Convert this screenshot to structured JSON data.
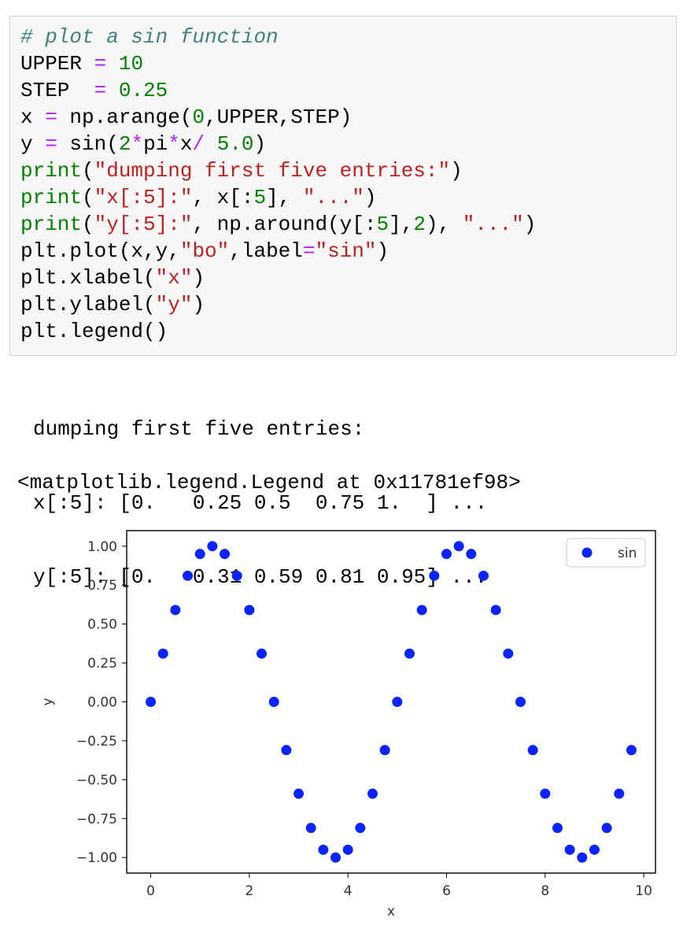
{
  "code": {
    "lines": [
      [
        {
          "t": "# plot a sin function",
          "c": "cm"
        }
      ],
      [
        {
          "t": "UPPER ",
          "c": "nm"
        },
        {
          "t": "=",
          "c": "op"
        },
        {
          "t": " ",
          "c": "nm"
        },
        {
          "t": "10",
          "c": "num"
        }
      ],
      [
        {
          "t": "STEP  ",
          "c": "nm"
        },
        {
          "t": "=",
          "c": "op"
        },
        {
          "t": " ",
          "c": "nm"
        },
        {
          "t": "0.25",
          "c": "num"
        }
      ],
      [
        {
          "t": "x ",
          "c": "nm"
        },
        {
          "t": "=",
          "c": "op"
        },
        {
          "t": " np.arange(",
          "c": "nm"
        },
        {
          "t": "0",
          "c": "num"
        },
        {
          "t": ",UPPER,STEP)",
          "c": "nm"
        }
      ],
      [
        {
          "t": "y ",
          "c": "nm"
        },
        {
          "t": "=",
          "c": "op"
        },
        {
          "t": " sin(",
          "c": "nm"
        },
        {
          "t": "2",
          "c": "num"
        },
        {
          "t": "*",
          "c": "op"
        },
        {
          "t": "pi",
          "c": "nm"
        },
        {
          "t": "*",
          "c": "op"
        },
        {
          "t": "x",
          "c": "nm"
        },
        {
          "t": "/",
          "c": "op"
        },
        {
          "t": " ",
          "c": "nm"
        },
        {
          "t": "5.0",
          "c": "num"
        },
        {
          "t": ")",
          "c": "nm"
        }
      ],
      [
        {
          "t": "print",
          "c": "bi"
        },
        {
          "t": "(",
          "c": "nm"
        },
        {
          "t": "\"dumping first five entries:\"",
          "c": "str"
        },
        {
          "t": ")",
          "c": "nm"
        }
      ],
      [
        {
          "t": "print",
          "c": "bi"
        },
        {
          "t": "(",
          "c": "nm"
        },
        {
          "t": "\"x[:5]:\"",
          "c": "str"
        },
        {
          "t": ", x[:",
          "c": "nm"
        },
        {
          "t": "5",
          "c": "num"
        },
        {
          "t": "], ",
          "c": "nm"
        },
        {
          "t": "\"...\"",
          "c": "str"
        },
        {
          "t": ")",
          "c": "nm"
        }
      ],
      [
        {
          "t": "print",
          "c": "bi"
        },
        {
          "t": "(",
          "c": "nm"
        },
        {
          "t": "\"y[:5]:\"",
          "c": "str"
        },
        {
          "t": ", np.around(y[:",
          "c": "nm"
        },
        {
          "t": "5",
          "c": "num"
        },
        {
          "t": "],",
          "c": "nm"
        },
        {
          "t": "2",
          "c": "num"
        },
        {
          "t": "), ",
          "c": "nm"
        },
        {
          "t": "\"...\"",
          "c": "str"
        },
        {
          "t": ")",
          "c": "nm"
        }
      ],
      [
        {
          "t": "plt.plot(x,y,",
          "c": "nm"
        },
        {
          "t": "\"bo\"",
          "c": "str"
        },
        {
          "t": ",label",
          "c": "nm"
        },
        {
          "t": "=",
          "c": "op"
        },
        {
          "t": "\"sin\"",
          "c": "str"
        },
        {
          "t": ")",
          "c": "nm"
        }
      ],
      [
        {
          "t": "plt.xlabel(",
          "c": "nm"
        },
        {
          "t": "\"x\"",
          "c": "str"
        },
        {
          "t": ")",
          "c": "nm"
        }
      ],
      [
        {
          "t": "plt.ylabel(",
          "c": "nm"
        },
        {
          "t": "\"y\"",
          "c": "str"
        },
        {
          "t": ")",
          "c": "nm"
        }
      ],
      [
        {
          "t": "plt.legend()",
          "c": "nm"
        }
      ]
    ]
  },
  "syntax_colors": {
    "cm": "#408080",
    "nm": "#000000",
    "op": "#aa22ff",
    "num": "#008000",
    "bi": "#008000",
    "str": "#ba2121"
  },
  "output": {
    "stdout_lines": [
      "dumping first five entries:",
      "x[:5]: [0.   0.25 0.5  0.75 1.  ] ...",
      "y[:5]: [0.   0.31 0.59 0.81 0.95] ..."
    ],
    "repr": "<matplotlib.legend.Legend at 0x11781ef98>"
  },
  "chart_data": {
    "type": "scatter",
    "xlabel": "x",
    "ylabel": "y",
    "xlim": [
      -0.4875,
      10.2375
    ],
    "ylim": [
      -1.1,
      1.1
    ],
    "xticks": [
      0,
      2,
      4,
      6,
      8,
      10
    ],
    "xtick_labels": [
      "0",
      "2",
      "4",
      "6",
      "8",
      "10"
    ],
    "yticks": [
      1.0,
      0.75,
      0.5,
      0.25,
      0.0,
      -0.25,
      -0.5,
      -0.75,
      -1.0
    ],
    "ytick_labels": [
      "1.00",
      "0.75",
      "0.50",
      "0.25",
      "0.00",
      "−0.25",
      "−0.50",
      "−0.75",
      "−1.00"
    ],
    "legend_position": "top-right",
    "grid": false,
    "marker_color": "#0b24fb",
    "series": [
      {
        "name": "sin",
        "x": [
          0,
          0.25,
          0.5,
          0.75,
          1.0,
          1.25,
          1.5,
          1.75,
          2.0,
          2.25,
          2.5,
          2.75,
          3.0,
          3.25,
          3.5,
          3.75,
          4.0,
          4.25,
          4.5,
          4.75,
          5.0,
          5.25,
          5.5,
          5.75,
          6.0,
          6.25,
          6.5,
          6.75,
          7.0,
          7.25,
          7.5,
          7.75,
          8.0,
          8.25,
          8.5,
          8.75,
          9.0,
          9.25,
          9.5,
          9.75
        ],
        "y": [
          0,
          0.31,
          0.59,
          0.81,
          0.95,
          1.0,
          0.95,
          0.81,
          0.59,
          0.31,
          0,
          -0.31,
          -0.59,
          -0.81,
          -0.95,
          -1.0,
          -0.95,
          -0.81,
          -0.59,
          -0.31,
          0,
          0.31,
          0.59,
          0.81,
          0.95,
          1.0,
          0.95,
          0.81,
          0.59,
          0.31,
          0,
          -0.31,
          -0.59,
          -0.81,
          -0.95,
          -1.0,
          -0.95,
          -0.81,
          -0.59,
          -0.31
        ]
      }
    ]
  }
}
